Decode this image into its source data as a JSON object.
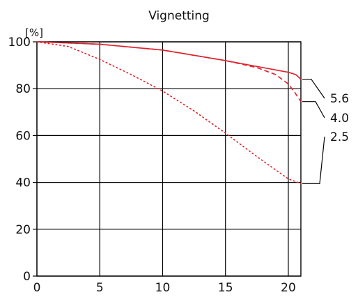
{
  "chart_data": {
    "type": "line",
    "title": "Vignetting",
    "ylabel": "[%]",
    "xlabel": "",
    "xlim": [
      0,
      21
    ],
    "ylim": [
      0,
      100
    ],
    "xticks": [
      0,
      5,
      10,
      15,
      20
    ],
    "yticks": [
      0,
      20,
      40,
      60,
      80,
      100
    ],
    "grid": true,
    "series": [
      {
        "name": "5.6",
        "style": "solid",
        "color": "#e0202a",
        "x": [
          0,
          5,
          10,
          15,
          18,
          20,
          20.6,
          21
        ],
        "y": [
          100,
          99,
          96.5,
          92,
          89,
          87,
          86,
          84
        ]
      },
      {
        "name": "4.0",
        "style": "dashed",
        "color": "#e0202a",
        "x": [
          0,
          5,
          10,
          15,
          17.5,
          19,
          20,
          20.5,
          21
        ],
        "y": [
          100,
          99,
          96.5,
          92,
          89,
          86,
          82,
          78.5,
          74.5
        ]
      },
      {
        "name": "2.5",
        "style": "dotted",
        "color": "#e0202a",
        "x": [
          0,
          2.5,
          5,
          7.5,
          10,
          12.5,
          15,
          17.5,
          20,
          21
        ],
        "y": [
          100,
          98,
          92.5,
          86,
          79,
          70.5,
          61,
          51,
          41.5,
          39.5
        ]
      }
    ]
  }
}
